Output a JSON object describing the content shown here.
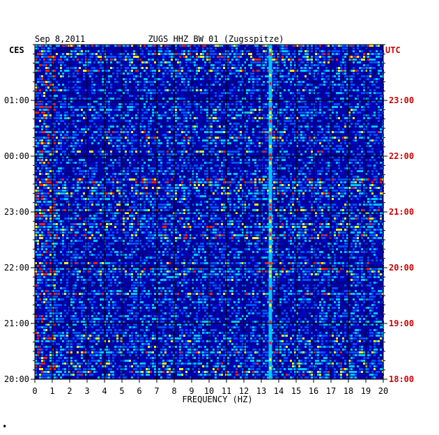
{
  "header": {
    "date": "Sep 8,2011",
    "station": "ZUGS HHZ BW 01 (Zugsspitze)"
  },
  "chart_data": {
    "type": "heatmap",
    "xlabel": "FREQUENCY (HZ)",
    "xlim": [
      0,
      20
    ],
    "x_ticks": [
      "0",
      "1",
      "2",
      "3",
      "4",
      "5",
      "6",
      "7",
      "8",
      "9",
      "10",
      "11",
      "12",
      "13",
      "14",
      "15",
      "16",
      "17",
      "18",
      "19",
      "20"
    ],
    "left_axis": {
      "label": "CES",
      "ticks": [
        "01:00",
        "00:00",
        "23:00",
        "22:00",
        "21:00",
        "20:00"
      ]
    },
    "right_axis": {
      "label": "UTC",
      "ticks": [
        "23:00",
        "22:00",
        "21:00",
        "20:00",
        "19:00",
        "18:00"
      ],
      "color": "#cc0000"
    },
    "persistent_line_hz": 13.5,
    "colors": {
      "background": "#000090",
      "low": "#0000c8",
      "mid": "#0050ff",
      "high": "#00c8ff",
      "peak": "#ffff00",
      "max": "#ff2000",
      "grid": "#000000"
    }
  },
  "footer": {
    "mark": "•"
  }
}
